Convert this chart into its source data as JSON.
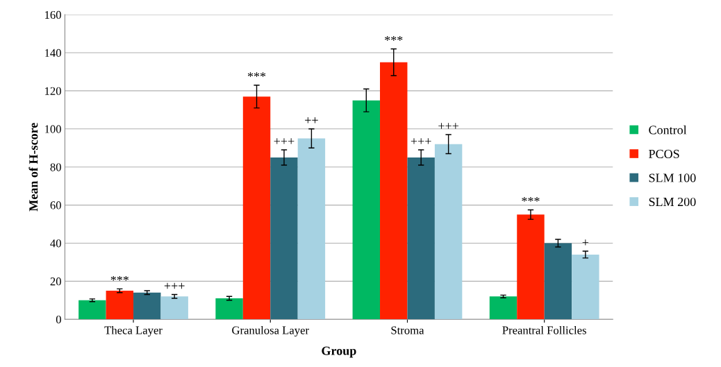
{
  "chart_data": {
    "type": "bar",
    "xlabel": "Group",
    "ylabel": "Mean of H-score",
    "categories": [
      "Theca Layer",
      "Granulosa Layer",
      "Stroma",
      "Preantral Follicles"
    ],
    "series": [
      {
        "name": "Control",
        "color": "#00b862",
        "values": [
          10,
          11,
          115,
          12
        ],
        "errors": [
          0.7,
          1,
          6,
          0.7
        ]
      },
      {
        "name": "PCOS",
        "color": "#ff2200",
        "values": [
          15,
          117,
          135,
          55
        ],
        "errors": [
          1,
          6,
          7,
          2.5
        ],
        "value_labels": [
          "***",
          "***",
          "***",
          "***"
        ]
      },
      {
        "name": "SLM 100",
        "color": "#2c6b7d",
        "values": [
          14,
          85,
          85,
          40
        ],
        "errors": [
          1,
          4,
          4,
          2
        ],
        "value_labels": [
          null,
          "+++",
          "+++",
          null
        ]
      },
      {
        "name": "SLM 200",
        "color": "#a6d2e2",
        "values": [
          12,
          95,
          92,
          34
        ],
        "errors": [
          1,
          5,
          5,
          1.8
        ],
        "value_labels": [
          "+++",
          "++",
          "+++",
          "+"
        ]
      }
    ],
    "ylim": [
      0,
      160
    ],
    "yticks": [
      0,
      20,
      40,
      60,
      80,
      100,
      120,
      140,
      160
    ],
    "grid": "y",
    "legend": "right"
  }
}
